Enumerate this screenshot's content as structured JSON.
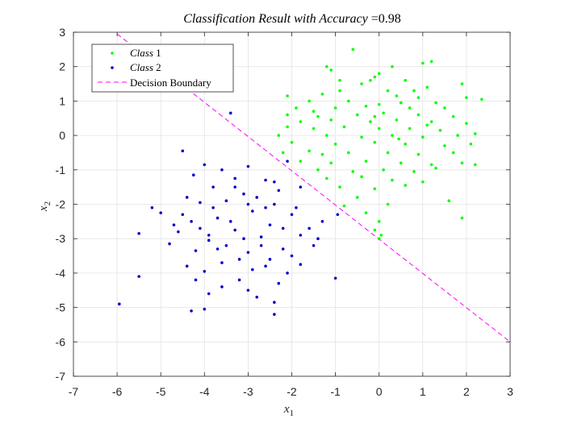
{
  "chart_data": {
    "type": "scatter",
    "title": "Classification Result with Accuracy =0.98",
    "title_italic_part": "Classification Result with Accuracy",
    "title_value": "=0.98",
    "xlabel": "x",
    "xlabel_sub": "1",
    "ylabel": "x",
    "ylabel_sub": "2",
    "xlim": [
      -7,
      3
    ],
    "ylim": [
      -7,
      3
    ],
    "xticks": [
      "-7",
      "-6",
      "-5",
      "-4",
      "-3",
      "-2",
      "-1",
      "0",
      "1",
      "2",
      "3"
    ],
    "yticks": [
      "3",
      "2",
      "1",
      "0",
      "-1",
      "-2",
      "-3",
      "-4",
      "-5",
      "-6",
      "-7"
    ],
    "grid": true,
    "legend_position": "top-left",
    "legend": [
      {
        "label_italic": "Class",
        "label_num": "1",
        "marker": "dot",
        "color": "#00ff00"
      },
      {
        "label_italic": "Class",
        "label_num": "2",
        "marker": "dot",
        "color": "#0000cc"
      },
      {
        "label": "Decision Boundary",
        "marker": "dashed-line",
        "color": "#ff00ff"
      }
    ],
    "series": [
      {
        "name": "Class 1",
        "color": "#00ff00",
        "points": [
          [
            -1.2,
            2.0
          ],
          [
            -0.6,
            2.5
          ],
          [
            -1.1,
            1.9
          ],
          [
            0.3,
            2.0
          ],
          [
            1.0,
            2.1
          ],
          [
            1.2,
            2.15
          ],
          [
            -0.1,
            1.7
          ],
          [
            -0.2,
            1.6
          ],
          [
            0.0,
            1.8
          ],
          [
            0.6,
            1.6
          ],
          [
            1.9,
            1.5
          ],
          [
            1.1,
            1.4
          ],
          [
            -0.4,
            1.5
          ],
          [
            -0.9,
            1.3
          ],
          [
            0.2,
            1.3
          ],
          [
            -2.1,
            1.15
          ],
          [
            -1.3,
            1.2
          ],
          [
            0.4,
            1.15
          ],
          [
            0.9,
            1.1
          ],
          [
            2.0,
            1.1
          ],
          [
            2.35,
            1.05
          ],
          [
            -1.6,
            1.0
          ],
          [
            -0.7,
            1.0
          ],
          [
            0.0,
            0.9
          ],
          [
            0.5,
            0.95
          ],
          [
            1.3,
            0.95
          ],
          [
            -1.9,
            0.8
          ],
          [
            -1.0,
            0.8
          ],
          [
            -0.3,
            0.85
          ],
          [
            0.7,
            0.8
          ],
          [
            1.5,
            0.8
          ],
          [
            -2.1,
            0.6
          ],
          [
            -1.4,
            0.55
          ],
          [
            -0.5,
            0.6
          ],
          [
            0.1,
            0.65
          ],
          [
            0.9,
            0.6
          ],
          [
            1.7,
            0.55
          ],
          [
            -1.8,
            0.4
          ],
          [
            -1.1,
            0.45
          ],
          [
            -0.2,
            0.4
          ],
          [
            0.4,
            0.45
          ],
          [
            1.2,
            0.4
          ],
          [
            2.0,
            0.35
          ],
          [
            -2.1,
            0.25
          ],
          [
            -1.5,
            0.2
          ],
          [
            -0.8,
            0.25
          ],
          [
            0.0,
            0.2
          ],
          [
            0.7,
            0.2
          ],
          [
            1.4,
            0.15
          ],
          [
            2.2,
            0.05
          ],
          [
            -2.3,
            0.0
          ],
          [
            -1.2,
            0.0
          ],
          [
            -0.4,
            -0.05
          ],
          [
            0.3,
            0.0
          ],
          [
            1.0,
            -0.05
          ],
          [
            1.8,
            0.0
          ],
          [
            -2.0,
            -0.2
          ],
          [
            -1.0,
            -0.25
          ],
          [
            -0.1,
            -0.2
          ],
          [
            0.6,
            -0.25
          ],
          [
            1.5,
            -0.3
          ],
          [
            2.1,
            -0.25
          ],
          [
            -2.2,
            -0.5
          ],
          [
            -1.6,
            -0.45
          ],
          [
            -0.7,
            -0.5
          ],
          [
            0.2,
            -0.5
          ],
          [
            0.9,
            -0.55
          ],
          [
            1.7,
            -0.5
          ],
          [
            -1.8,
            -0.75
          ],
          [
            -1.1,
            -0.8
          ],
          [
            -0.3,
            -0.75
          ],
          [
            0.5,
            -0.8
          ],
          [
            1.2,
            -0.85
          ],
          [
            1.9,
            -0.8
          ],
          [
            -1.4,
            -1.0
          ],
          [
            -0.6,
            -1.05
          ],
          [
            0.1,
            -1.0
          ],
          [
            0.8,
            -1.05
          ],
          [
            1.3,
            -0.95
          ],
          [
            2.2,
            -0.85
          ],
          [
            -1.2,
            -1.25
          ],
          [
            -0.4,
            -1.2
          ],
          [
            0.3,
            -1.3
          ],
          [
            1.0,
            -1.35
          ],
          [
            -0.9,
            -1.5
          ],
          [
            -0.1,
            -1.55
          ],
          [
            0.6,
            -1.45
          ],
          [
            1.6,
            -1.9
          ],
          [
            -0.5,
            -1.8
          ],
          [
            0.2,
            -2.0
          ],
          [
            -0.3,
            -2.25
          ],
          [
            -0.8,
            -2.05
          ],
          [
            1.9,
            -2.4
          ],
          [
            0.0,
            -2.5
          ],
          [
            -0.1,
            -2.75
          ],
          [
            0.05,
            -2.9
          ],
          [
            0.0,
            -3.0
          ],
          [
            -1.5,
            0.7
          ],
          [
            -0.9,
            1.6
          ],
          [
            0.8,
            1.3
          ],
          [
            -0.1,
            0.55
          ],
          [
            0.45,
            -0.1
          ],
          [
            1.1,
            0.3
          ],
          [
            -1.3,
            -0.55
          ]
        ]
      },
      {
        "name": "Class 2",
        "color": "#0000cc",
        "points": [
          [
            -3.4,
            0.65
          ],
          [
            -4.5,
            -0.45
          ],
          [
            -3.6,
            -1.0
          ],
          [
            -4.0,
            -0.85
          ],
          [
            -4.25,
            -1.15
          ],
          [
            -3.0,
            -0.9
          ],
          [
            -2.1,
            -0.75
          ],
          [
            -2.4,
            -1.35
          ],
          [
            -2.6,
            -1.3
          ],
          [
            -3.3,
            -1.25
          ],
          [
            -4.4,
            -1.8
          ],
          [
            -3.8,
            -1.5
          ],
          [
            -1.8,
            -1.5
          ],
          [
            -2.3,
            -1.6
          ],
          [
            -3.1,
            -1.7
          ],
          [
            -3.5,
            -1.9
          ],
          [
            -4.1,
            -1.95
          ],
          [
            -5.2,
            -2.1
          ],
          [
            -5.0,
            -2.25
          ],
          [
            -2.0,
            -2.3
          ],
          [
            -2.9,
            -2.2
          ],
          [
            -3.7,
            -2.4
          ],
          [
            -4.3,
            -2.5
          ],
          [
            -1.3,
            -2.5
          ],
          [
            -0.95,
            -2.3
          ],
          [
            -2.5,
            -2.6
          ],
          [
            -3.3,
            -2.75
          ],
          [
            -4.6,
            -2.8
          ],
          [
            -5.5,
            -2.85
          ],
          [
            -1.8,
            -2.9
          ],
          [
            -2.7,
            -2.95
          ],
          [
            -3.9,
            -3.05
          ],
          [
            -4.8,
            -3.15
          ],
          [
            -1.5,
            -3.2
          ],
          [
            -2.2,
            -3.3
          ],
          [
            -3.0,
            -3.4
          ],
          [
            -4.2,
            -3.35
          ],
          [
            -2.5,
            -3.6
          ],
          [
            -3.6,
            -3.7
          ],
          [
            -1.8,
            -3.75
          ],
          [
            -2.9,
            -3.9
          ],
          [
            -4.0,
            -3.95
          ],
          [
            -3.2,
            -4.2
          ],
          [
            -2.3,
            -4.3
          ],
          [
            -3.6,
            -4.4
          ],
          [
            -1.0,
            -4.15
          ],
          [
            -5.5,
            -4.1
          ],
          [
            -3.9,
            -4.6
          ],
          [
            -2.8,
            -4.7
          ],
          [
            -2.4,
            -4.85
          ],
          [
            -4.0,
            -5.05
          ],
          [
            -4.3,
            -5.1
          ],
          [
            -2.4,
            -5.2
          ],
          [
            -5.95,
            -4.9
          ],
          [
            -3.0,
            -2.0
          ],
          [
            -3.4,
            -2.5
          ],
          [
            -2.6,
            -2.1
          ],
          [
            -2.2,
            -2.7
          ],
          [
            -3.7,
            -3.3
          ],
          [
            -4.5,
            -2.3
          ],
          [
            -3.1,
            -3.0
          ],
          [
            -2.0,
            -3.5
          ],
          [
            -3.5,
            -3.2
          ],
          [
            -2.7,
            -3.2
          ],
          [
            -4.1,
            -2.7
          ],
          [
            -1.6,
            -2.7
          ],
          [
            -3.8,
            -2.1
          ],
          [
            -2.4,
            -2.0
          ],
          [
            -3.2,
            -3.6
          ],
          [
            -4.4,
            -3.8
          ],
          [
            -2.1,
            -4.0
          ],
          [
            -3.3,
            -1.5
          ],
          [
            -2.8,
            -1.8
          ],
          [
            -1.9,
            -2.1
          ],
          [
            -4.7,
            -2.6
          ],
          [
            -3.0,
            -4.5
          ],
          [
            -2.6,
            -3.8
          ],
          [
            -3.9,
            -2.9
          ],
          [
            -1.4,
            -3.0
          ],
          [
            -4.2,
            -4.2
          ]
        ]
      }
    ],
    "boundary_line": {
      "x": [
        -6.0,
        3.0
      ],
      "y": [
        2.95,
        -6.0
      ],
      "color": "#ff00ff",
      "style": "dashed"
    }
  }
}
